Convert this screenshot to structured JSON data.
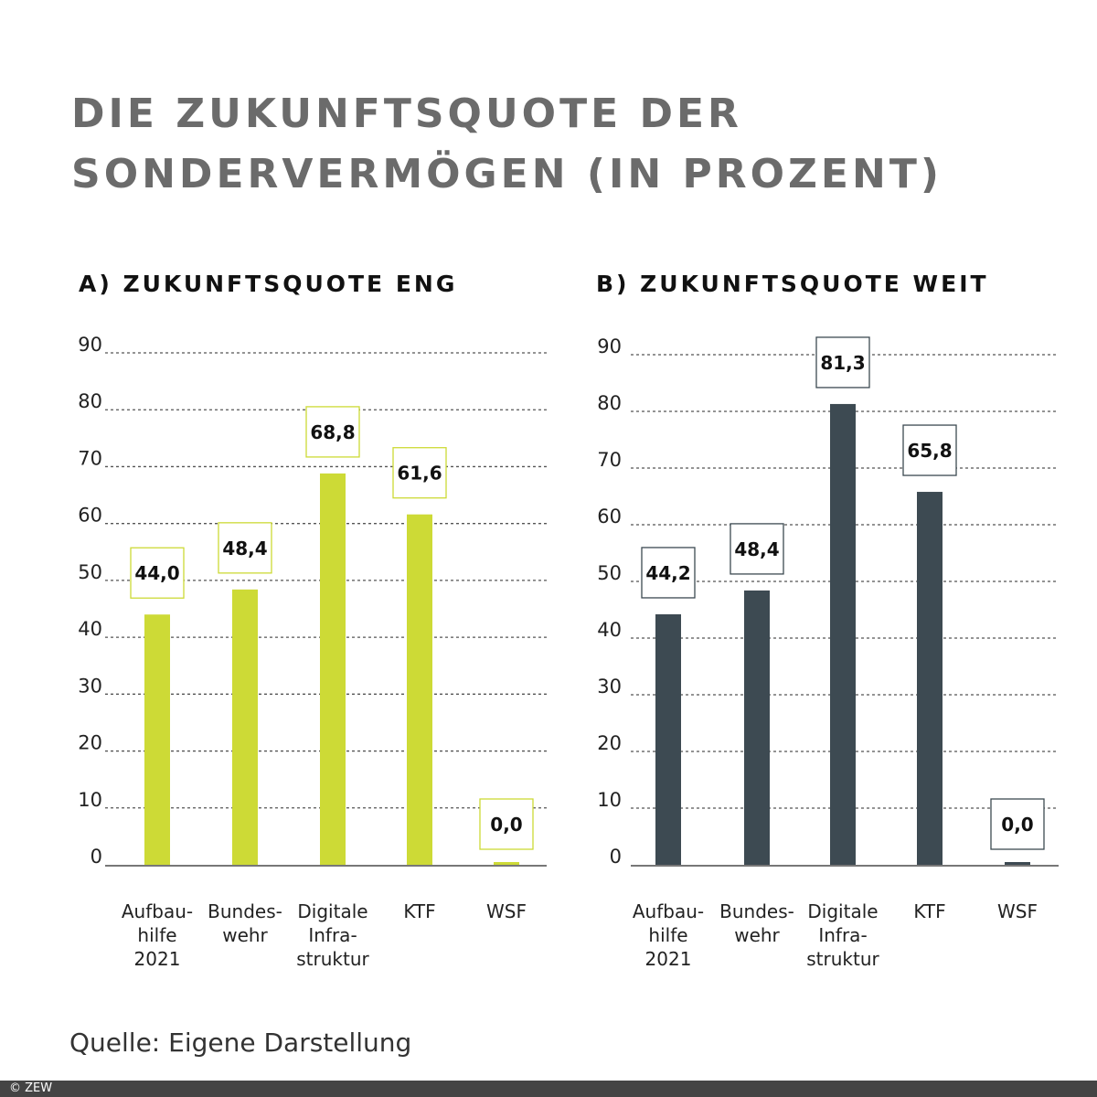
{
  "title_lines": [
    "DIE ZUKUNFTSQUOTE DER",
    "SONDERVERMÖGEN (IN PROZENT)"
  ],
  "source": "Quelle: Eigene Darstellung",
  "copyright": "© ZEW",
  "chart_data": [
    {
      "type": "bar",
      "title": "A) ZUKUNFTSQUOTE ENG",
      "categories": [
        "Aufbau-\nhilfe\n2021",
        "Bundes-\nwehr",
        "Digitale\nInfra-\nstruktur",
        "KTF",
        "WSF"
      ],
      "values": [
        44.0,
        48.4,
        68.8,
        61.6,
        0.0
      ],
      "data_labels": [
        "44,0",
        "48,4",
        "68,8",
        "61,6",
        "0,0"
      ],
      "yticks": [
        0,
        10,
        20,
        30,
        40,
        50,
        60,
        70,
        80,
        90
      ],
      "ylim": [
        0,
        90
      ],
      "grid": true,
      "color": "#cdda36"
    },
    {
      "type": "bar",
      "title": "B) ZUKUNFTSQUOTE WEIT",
      "categories": [
        "Aufbau-\nhilfe\n2021",
        "Bundes-\nwehr",
        "Digitale\nInfra-\nstruktur",
        "KTF",
        "WSF"
      ],
      "values": [
        44.2,
        48.4,
        81.3,
        65.8,
        0.0
      ],
      "data_labels": [
        "44,2",
        "48,4",
        "81,3",
        "65,8",
        "0,0"
      ],
      "yticks": [
        0,
        10,
        20,
        30,
        40,
        50,
        60,
        70,
        80,
        90
      ],
      "ylim": [
        0,
        90
      ],
      "grid": true,
      "color": "#3d4a52"
    }
  ]
}
